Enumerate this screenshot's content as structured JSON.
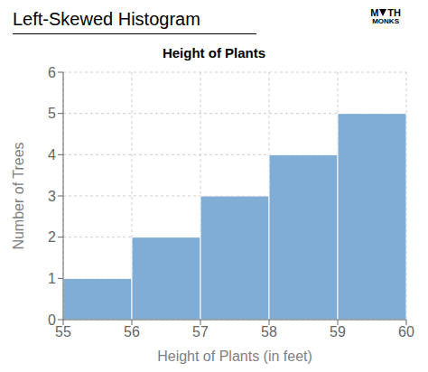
{
  "chart_data": {
    "type": "histogram",
    "title": "Left-Skewed Histogram",
    "subtitle": "Height of Plants",
    "x_label": "Height of Plants (in feet)",
    "y_label": "Number of Trees",
    "annotations": [
      "M",
      "TH",
      "MONKS"
    ],
    "bins": [
      55,
      56,
      57,
      58,
      59,
      60
    ],
    "values": [
      1,
      2,
      3,
      4,
      5
    ],
    "color": "#7fadd4",
    "xlim": [
      55,
      60
    ],
    "xticks": [
      55,
      56,
      57,
      58,
      59,
      60
    ],
    "ylim": [
      0,
      6
    ],
    "yticks": [
      0,
      1,
      2,
      3,
      4,
      5,
      6
    ],
    "grid": true
  }
}
